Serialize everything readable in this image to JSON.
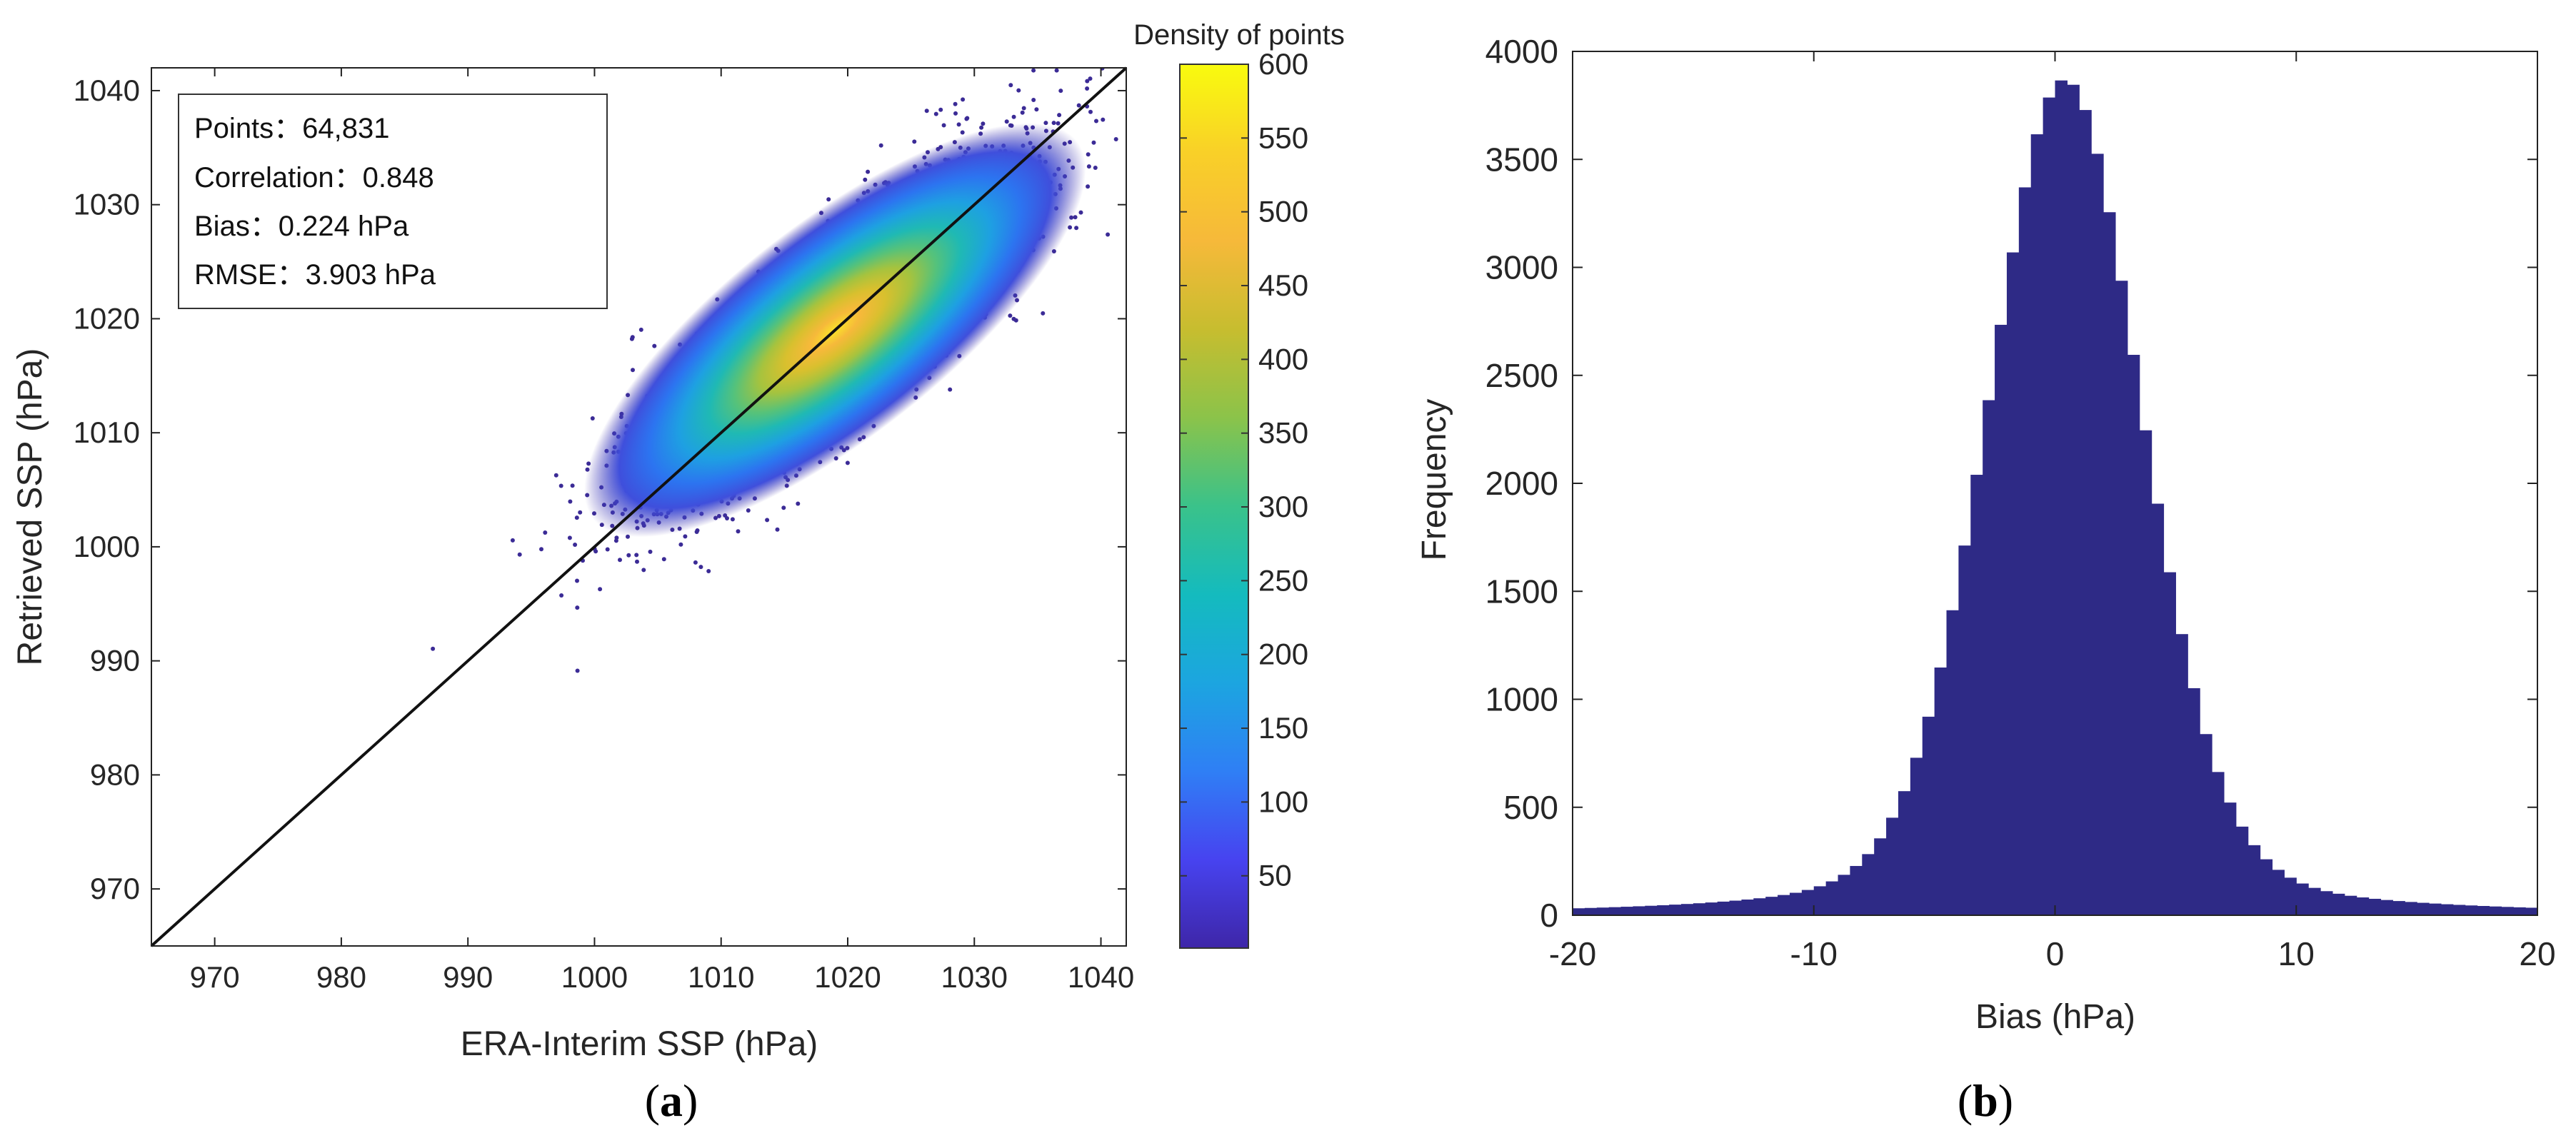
{
  "chart_data": [
    {
      "type": "scatter",
      "panel": "(a)",
      "xlabel": "ERA-Interim SSP (hPa)",
      "ylabel": "Retrieved SSP (hPa)",
      "xlim": [
        965,
        1042
      ],
      "ylim": [
        965,
        1042
      ],
      "xticks": [
        970,
        980,
        990,
        1000,
        1010,
        1020,
        1030,
        1040
      ],
      "yticks": [
        970,
        980,
        990,
        1000,
        1010,
        1020,
        1030,
        1040
      ],
      "reference_line": "y = x",
      "stats": [
        "Points：64,831",
        "Correlation：0.848",
        "Bias：0.224 hPa",
        "RMSE：3.903 hPa"
      ],
      "density_center": [
        1019,
        1019
      ],
      "colorbar": {
        "title": "Density of points",
        "range": [
          1,
          600
        ],
        "ticks": [
          50,
          100,
          150,
          200,
          250,
          300,
          350,
          400,
          450,
          500,
          550,
          600
        ],
        "colormap": [
          "#3e26a8",
          "#4743f0",
          "#2f7ff5",
          "#1ca5e0",
          "#14bbbe",
          "#3ac28a",
          "#8bc34a",
          "#c7bd2f",
          "#f6b93a",
          "#f9d028",
          "#f9fb0e"
        ]
      },
      "point_color": "#3b2b96"
    },
    {
      "type": "bar",
      "panel": "(b)",
      "xlabel": "Bias (hPa)",
      "ylabel": "Frequency",
      "xlim": [
        -20,
        20
      ],
      "ylim": [
        0,
        4000
      ],
      "xticks": [
        -20,
        -10,
        0,
        10,
        20
      ],
      "yticks": [
        0,
        500,
        1000,
        1500,
        2000,
        2500,
        3000,
        3500,
        4000
      ],
      "bin_width": 0.5,
      "bin_centers_range": [
        -20,
        20
      ],
      "peak_center": 0.4,
      "peak_frequency": 3870,
      "color": "#2e2a86"
    }
  ]
}
